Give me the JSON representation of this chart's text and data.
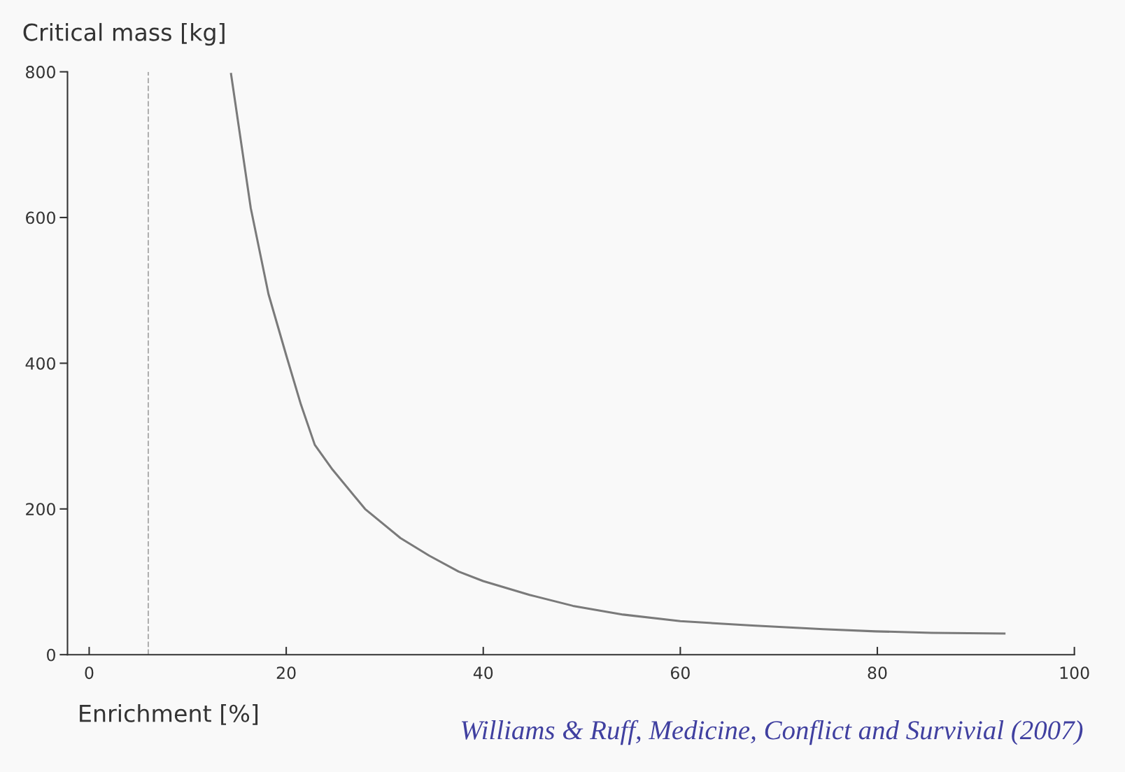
{
  "chart_data": {
    "type": "line",
    "xlabel": "Enrichment [%]",
    "ylabel": "Critical mass [kg]",
    "x": [
      14.4,
      16.4,
      18.2,
      20,
      21.5,
      22.9,
      24.7,
      28,
      31.6,
      34.5,
      37.5,
      40,
      44.7,
      49.1,
      54.2,
      60,
      67.3,
      74.5,
      79.8,
      85.5,
      92.9
    ],
    "series": [
      {
        "color": "#7a7a7a",
        "values": [
          797,
          613,
          495,
          411,
          343,
          288,
          254,
          200,
          160,
          136,
          114,
          101,
          82,
          67,
          55,
          46,
          40,
          35,
          32,
          30,
          29
        ]
      }
    ],
    "xlim": [
      -2.2,
      100
    ],
    "xticks": [
      0,
      20,
      40,
      60,
      80,
      100
    ],
    "ylim": [
      0,
      800
    ],
    "yticks": [
      0,
      200,
      400,
      600,
      800
    ],
    "grid": false,
    "legend": false,
    "marker": "none",
    "line_style": "solid",
    "ref_lines": [
      {
        "axis": "x",
        "value": 6,
        "label": null,
        "color": "#b0b0b0",
        "line_style": "dashed"
      }
    ],
    "annotations": [
      "Williams & Ruff, Medicine, Conflict and Survivial (2007)"
    ]
  }
}
